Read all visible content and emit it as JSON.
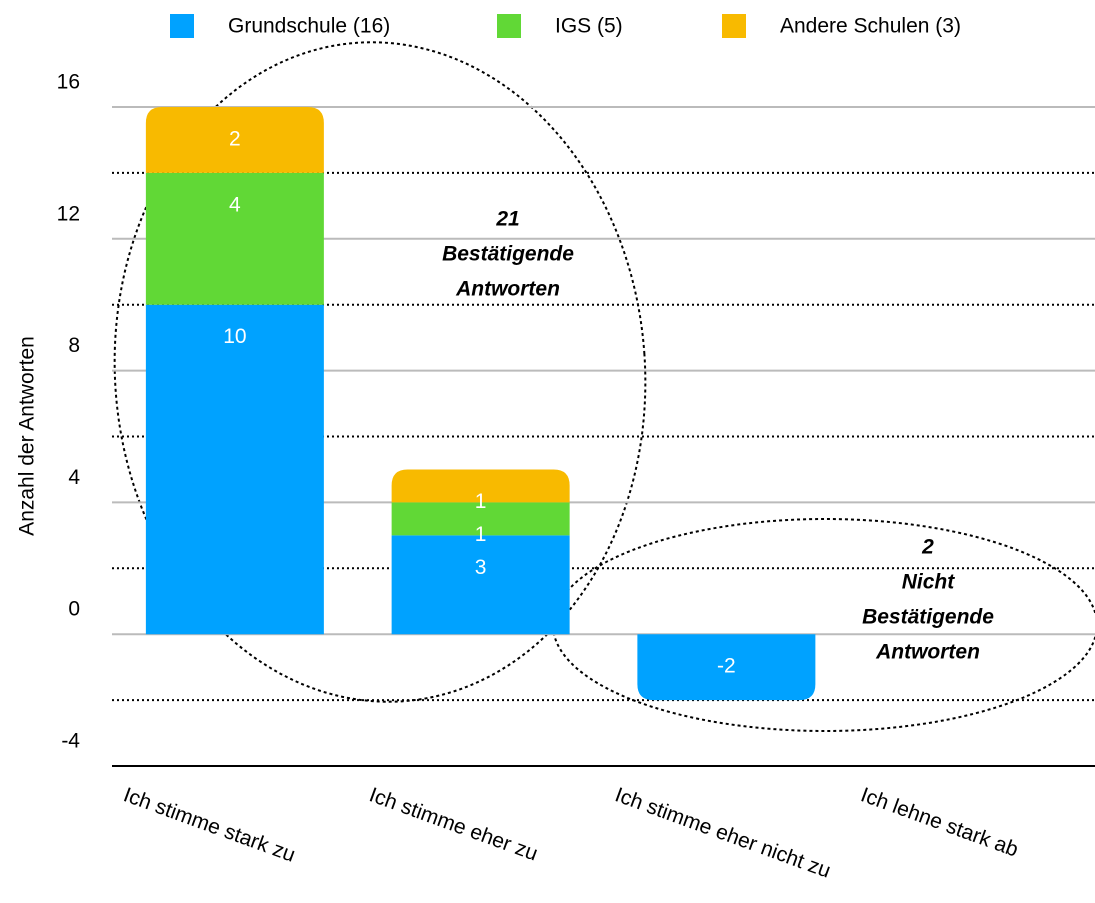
{
  "chart_data": {
    "type": "stacked_bar",
    "ylabel": "Anzahl der Antworten",
    "categories": [
      "Ich stimme stark zu",
      "Ich stimme eher zu",
      "Ich stimme eher nicht zu",
      "Ich lehne stark ab"
    ],
    "series": [
      {
        "name": "Grundschule (16)",
        "color": "#00a2ff",
        "values": [
          10,
          3,
          -2,
          null
        ]
      },
      {
        "name": "IGS (5)",
        "color": "#61d836",
        "values": [
          4,
          1,
          null,
          null
        ]
      },
      {
        "name": "Andere Schulen (3)",
        "color": "#f8ba00",
        "values": [
          2,
          1,
          null,
          null
        ]
      }
    ],
    "ylim": [
      -4,
      16
    ],
    "yticks": [
      -4,
      0,
      4,
      8,
      12,
      16
    ],
    "minor_yticks": [
      -2,
      2,
      6,
      10,
      14
    ],
    "grid": true,
    "legend": "top",
    "annotations": [
      {
        "lines": [
          "21",
          "Bestätigende",
          "Antworten"
        ]
      },
      {
        "lines": [
          "2",
          "Nicht",
          "Bestätigende",
          "Antworten"
        ]
      }
    ]
  }
}
